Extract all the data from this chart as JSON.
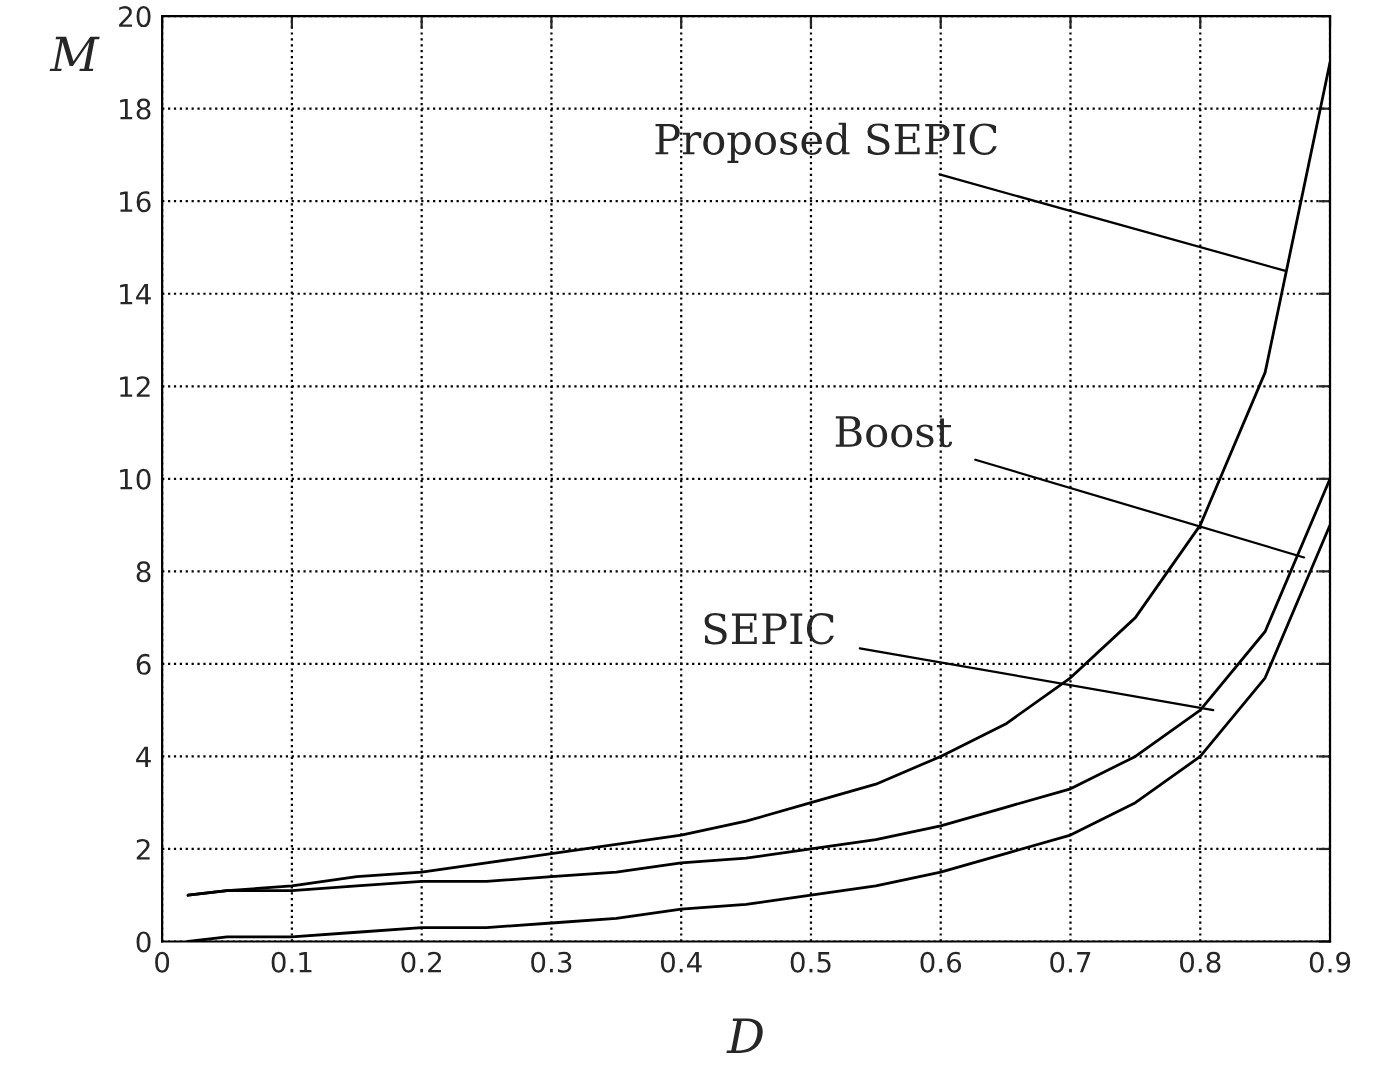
{
  "chart_data": {
    "type": "line",
    "xlabel": "D",
    "ylabel": "M",
    "x": [
      0.02,
      0.05,
      0.1,
      0.15,
      0.2,
      0.25,
      0.3,
      0.35,
      0.4,
      0.45,
      0.5,
      0.55,
      0.6,
      0.65,
      0.7,
      0.75,
      0.8,
      0.85,
      0.9
    ],
    "series": [
      {
        "color": "#000000",
        "values": [
          1.0,
          1.1,
          1.2,
          1.4,
          1.5,
          1.7,
          1.9,
          2.1,
          2.3,
          2.6,
          3.0,
          3.4,
          4.0,
          4.7,
          5.7,
          7.0,
          9.0,
          12.3,
          19.0
        ]
      },
      {
        "color": "#000000",
        "values": [
          1.0,
          1.1,
          1.1,
          1.2,
          1.3,
          1.3,
          1.4,
          1.5,
          1.7,
          1.8,
          2.0,
          2.2,
          2.5,
          2.9,
          3.3,
          4.0,
          5.0,
          6.7,
          10.0
        ]
      },
      {
        "color": "#000000",
        "values": [
          0.0,
          0.1,
          0.1,
          0.2,
          0.3,
          0.3,
          0.4,
          0.5,
          0.7,
          0.8,
          1.0,
          1.2,
          1.5,
          1.9,
          2.3,
          3.0,
          4.0,
          5.7,
          9.0
        ]
      }
    ],
    "annotations": [
      {
        "text": "Proposed SEPIC",
        "x": 0.865,
        "y": 14.5
      },
      {
        "text": "Boost",
        "x": 0.88,
        "y": 8.3
      },
      {
        "text": "SEPIC",
        "x": 0.81,
        "y": 5.0
      }
    ],
    "xlim": [
      0,
      0.9
    ],
    "xticks": [
      0,
      0.1,
      0.2,
      0.3,
      0.4,
      0.5,
      0.6,
      0.7,
      0.8,
      0.9
    ],
    "ylim": [
      0,
      20
    ],
    "yticks": [
      0,
      2,
      4,
      6,
      8,
      10,
      12,
      14,
      16,
      18,
      20
    ],
    "grid": true,
    "line_style": "solid",
    "marker": "none",
    "legend": false
  }
}
